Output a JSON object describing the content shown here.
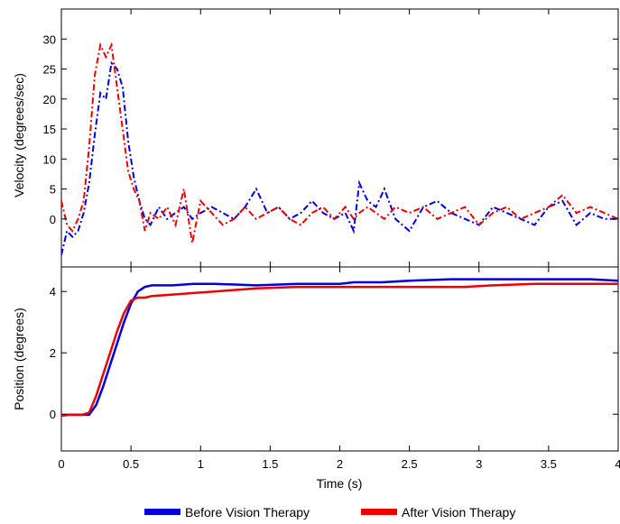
{
  "colors": {
    "before": "#0000dd",
    "after": "#ee0000"
  },
  "legend": {
    "before_label": "Before Vision Therapy",
    "after_label": "After Vision Therapy"
  },
  "chart_data": [
    {
      "type": "line",
      "panel": "velocity",
      "ylabel": "Velocity (degrees/sec)",
      "xlim": [
        0,
        4
      ],
      "ylim": [
        -8,
        35
      ],
      "yticks": [
        0,
        5,
        10,
        15,
        20,
        25,
        30
      ],
      "grid": false,
      "series": [
        {
          "name": "Before Vision Therapy",
          "color": "#0000dd",
          "dash": "dashdot",
          "x": [
            0,
            0.04,
            0.08,
            0.12,
            0.16,
            0.2,
            0.24,
            0.28,
            0.32,
            0.36,
            0.4,
            0.44,
            0.48,
            0.52,
            0.56,
            0.6,
            0.64,
            0.7,
            0.76,
            0.82,
            0.88,
            0.94,
            1.0,
            1.08,
            1.16,
            1.24,
            1.32,
            1.4,
            1.48,
            1.56,
            1.64,
            1.72,
            1.8,
            1.88,
            1.96,
            2.04,
            2.1,
            2.14,
            2.2,
            2.26,
            2.32,
            2.4,
            2.5,
            2.6,
            2.7,
            2.8,
            2.9,
            3.0,
            3.1,
            3.2,
            3.3,
            3.4,
            3.5,
            3.6,
            3.7,
            3.8,
            3.9,
            4.0
          ],
          "y": [
            -6,
            -2,
            -3,
            -2,
            1,
            6,
            14,
            21,
            20,
            26,
            25,
            22,
            13,
            7,
            3,
            0,
            -1,
            2,
            0,
            1,
            2,
            0,
            1,
            2,
            1,
            0,
            2,
            5,
            1,
            2,
            0,
            1,
            3,
            1,
            0,
            1,
            -2,
            6,
            3,
            2,
            5,
            0,
            -2,
            2,
            3,
            1,
            0,
            -1,
            2,
            1,
            0,
            -1,
            2,
            3,
            -1,
            1,
            0,
            0
          ]
        },
        {
          "name": "After Vision Therapy",
          "color": "#ee0000",
          "dash": "dashdot",
          "x": [
            0,
            0.04,
            0.08,
            0.12,
            0.16,
            0.2,
            0.24,
            0.28,
            0.32,
            0.36,
            0.4,
            0.44,
            0.48,
            0.52,
            0.56,
            0.6,
            0.64,
            0.7,
            0.76,
            0.82,
            0.88,
            0.94,
            1.0,
            1.08,
            1.16,
            1.24,
            1.32,
            1.4,
            1.48,
            1.56,
            1.64,
            1.72,
            1.8,
            1.88,
            1.96,
            2.04,
            2.1,
            2.14,
            2.2,
            2.26,
            2.32,
            2.4,
            2.5,
            2.6,
            2.7,
            2.8,
            2.9,
            3.0,
            3.1,
            3.2,
            3.3,
            3.4,
            3.5,
            3.6,
            3.7,
            3.8,
            3.9,
            4.0
          ],
          "y": [
            3,
            -1,
            -2,
            0,
            3,
            12,
            24,
            29,
            27,
            29,
            22,
            15,
            8,
            5,
            3,
            -2,
            1,
            0,
            2,
            -1,
            5,
            -4,
            3,
            1,
            -1,
            0,
            2,
            0,
            1,
            2,
            0,
            -1,
            1,
            2,
            0,
            2,
            0,
            1,
            2,
            1,
            0,
            2,
            1,
            2,
            0,
            1,
            2,
            -1,
            1,
            2,
            0,
            1,
            2,
            4,
            1,
            2,
            1,
            0
          ]
        }
      ]
    },
    {
      "type": "line",
      "panel": "position",
      "ylabel": "Position (degrees)",
      "xlabel": "Time (s)",
      "xlim": [
        0,
        4
      ],
      "ylim": [
        -1.2,
        4.8
      ],
      "xticks": [
        0,
        0.5,
        1,
        1.5,
        2,
        2.5,
        3,
        3.5,
        4
      ],
      "yticks": [
        0,
        2,
        4
      ],
      "grid": false,
      "series": [
        {
          "name": "Before Vision Therapy",
          "color": "#0000dd",
          "dash": "solid",
          "x": [
            0,
            0.05,
            0.1,
            0.15,
            0.2,
            0.25,
            0.3,
            0.35,
            0.4,
            0.45,
            0.5,
            0.55,
            0.6,
            0.65,
            0.8,
            0.95,
            1.1,
            1.4,
            1.7,
            2.0,
            2.1,
            2.3,
            2.5,
            2.8,
            3.0,
            3.3,
            3.6,
            3.8,
            4.0
          ],
          "y": [
            -0.05,
            -0.02,
            -0.02,
            -0.02,
            -0.02,
            0.3,
            0.9,
            1.6,
            2.3,
            3.0,
            3.6,
            4.0,
            4.15,
            4.2,
            4.2,
            4.25,
            4.25,
            4.2,
            4.25,
            4.25,
            4.3,
            4.3,
            4.35,
            4.4,
            4.4,
            4.4,
            4.4,
            4.4,
            4.35
          ]
        },
        {
          "name": "After Vision Therapy",
          "color": "#ee0000",
          "dash": "solid",
          "x": [
            0,
            0.05,
            0.1,
            0.15,
            0.2,
            0.25,
            0.3,
            0.35,
            0.4,
            0.45,
            0.5,
            0.55,
            0.6,
            0.65,
            0.8,
            0.95,
            1.1,
            1.4,
            1.7,
            2.0,
            2.3,
            2.6,
            2.9,
            3.1,
            3.4,
            3.7,
            4.0
          ],
          "y": [
            -0.05,
            -0.02,
            -0.02,
            -0.02,
            0.05,
            0.6,
            1.3,
            2.0,
            2.7,
            3.3,
            3.7,
            3.8,
            3.8,
            3.85,
            3.9,
            3.95,
            4.0,
            4.1,
            4.15,
            4.15,
            4.15,
            4.15,
            4.15,
            4.2,
            4.25,
            4.25,
            4.25
          ]
        }
      ]
    }
  ]
}
